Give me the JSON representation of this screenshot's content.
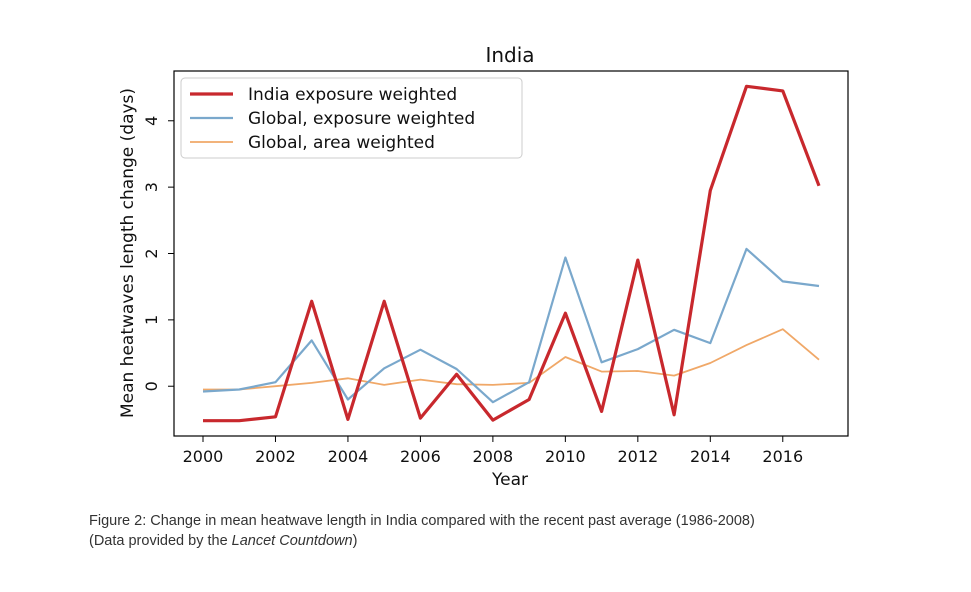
{
  "chart_data": {
    "type": "line",
    "title": "India",
    "xlabel": "Year",
    "ylabel": "Mean heatwaves length change (days)",
    "xlim": [
      1999.2,
      2017.8
    ],
    "ylim": [
      -0.75,
      4.75
    ],
    "x_ticks": [
      2000,
      2002,
      2004,
      2006,
      2008,
      2010,
      2012,
      2014,
      2016
    ],
    "y_ticks": [
      0,
      1,
      2,
      3,
      4
    ],
    "legend": "top-left",
    "grid": false,
    "x": [
      2000,
      2001,
      2002,
      2003,
      2004,
      2005,
      2006,
      2007,
      2008,
      2009,
      2010,
      2011,
      2012,
      2013,
      2014,
      2015,
      2016,
      2017
    ],
    "series": [
      {
        "name": "India exposure weighted",
        "color": "#c8282d",
        "values": [
          -0.52,
          -0.52,
          -0.46,
          1.28,
          -0.5,
          1.28,
          -0.48,
          0.18,
          -0.51,
          -0.2,
          1.1,
          -0.38,
          1.9,
          -0.43,
          2.95,
          4.52,
          4.45,
          3.02
        ]
      },
      {
        "name": "Global, exposure weighted",
        "color": "#7aa8cc",
        "values": [
          -0.08,
          -0.05,
          0.06,
          0.69,
          -0.2,
          0.27,
          0.55,
          0.26,
          -0.24,
          0.06,
          1.94,
          0.36,
          0.56,
          0.85,
          0.65,
          2.07,
          1.58,
          1.51
        ]
      },
      {
        "name": "Global, area weighted",
        "color": "#f0a868",
        "values": [
          -0.05,
          -0.05,
          0.0,
          0.05,
          0.12,
          0.02,
          0.1,
          0.03,
          0.02,
          0.05,
          0.44,
          0.22,
          0.23,
          0.16,
          0.35,
          0.62,
          0.86,
          0.4
        ]
      }
    ]
  },
  "caption": {
    "line1": "Figure 2: Change in mean heatwave length in India compared with the recent past average (1986-2008)",
    "line2_prefix": "(Data provided by the ",
    "line2_italic": "Lancet Countdown",
    "line2_suffix": ")"
  }
}
